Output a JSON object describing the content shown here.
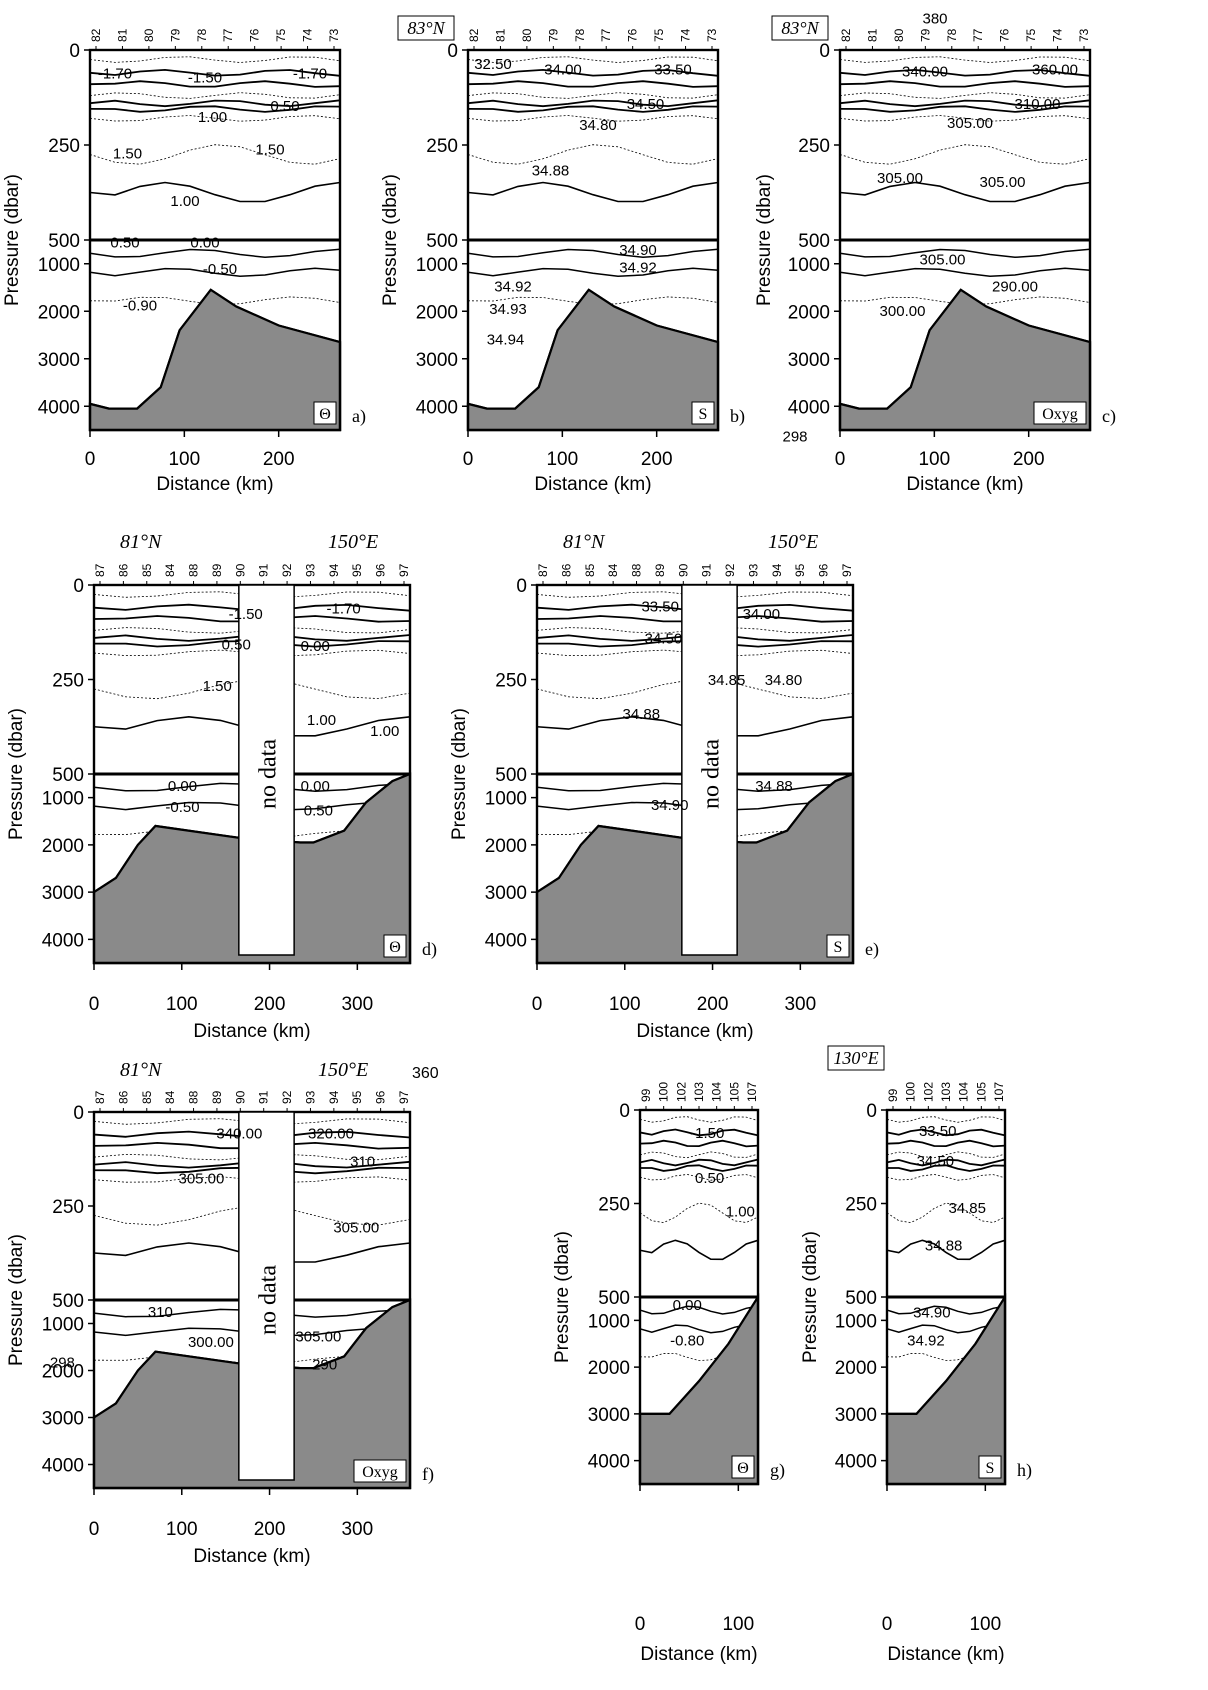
{
  "figure": {
    "panels": [
      {
        "id": "a",
        "label": "a)",
        "var": "Θ",
        "lat_label": "",
        "lon_label": "",
        "stations": [
          "82",
          "81",
          "80",
          "79",
          "78",
          "77",
          "76",
          "75",
          "74",
          "73"
        ],
        "upper_contour_labels": [
          "-1.70",
          "-1.50",
          "-1.70",
          "0.50",
          "1.00",
          "1.50",
          "1.50",
          "1.00"
        ],
        "lower_contour_labels": [
          "0.50",
          "0.00",
          "-0.50",
          "-0.90"
        ],
        "ylabel": "Pressure (dbar)",
        "xlabel": "Distance (km)",
        "upper_ticks": [
          "0",
          "250",
          "500"
        ],
        "lower_ticks": [
          "1000",
          "2000",
          "3000",
          "4000"
        ],
        "x_ticks": [
          "0",
          "100",
          "200"
        ],
        "no_data": false
      },
      {
        "id": "b",
        "label": "b)",
        "var": "S",
        "lat_label": "83°N",
        "lon_label": "",
        "stations": [
          "82",
          "81",
          "80",
          "79",
          "78",
          "77",
          "76",
          "75",
          "74",
          "73"
        ],
        "upper_contour_labels": [
          "32.50",
          "34.00",
          "33.50",
          "34.50",
          "34.80",
          "34.88"
        ],
        "lower_contour_labels": [
          "34.90",
          "34.92",
          "34.92",
          "34.93",
          "34.94"
        ],
        "ylabel": "Pressure (dbar)",
        "xlabel": "Distance (km)",
        "upper_ticks": [
          "0",
          "250",
          "500"
        ],
        "lower_ticks": [
          "1000",
          "2000",
          "3000",
          "4000"
        ],
        "x_ticks": [
          "0",
          "100",
          "200"
        ],
        "no_data": false
      },
      {
        "id": "c",
        "label": "c)",
        "var": "Oxyg",
        "lat_label": "83°N",
        "lon_label": "",
        "stations": [
          "82",
          "81",
          "80",
          "79",
          "78",
          "77",
          "76",
          "75",
          "74",
          "73"
        ],
        "upper_contour_labels": [
          "380",
          "340.00",
          "360.00",
          "310.00",
          "305.00",
          "305.00",
          "305.00"
        ],
        "lower_contour_labels": [
          "305.00",
          "290.00",
          "300.00",
          "298"
        ],
        "ylabel": "Pressure (dbar)",
        "xlabel": "Distance (km)",
        "upper_ticks": [
          "0",
          "250",
          "500"
        ],
        "lower_ticks": [
          "1000",
          "2000",
          "3000",
          "4000"
        ],
        "x_ticks": [
          "0",
          "100",
          "200"
        ],
        "no_data": false
      },
      {
        "id": "d",
        "label": "d)",
        "var": "Θ",
        "lat_label": "81°N",
        "lon_label": "150°E",
        "stations": [
          "87",
          "86",
          "85",
          "84",
          "88",
          "89",
          "90",
          "91",
          "92",
          "93",
          "94",
          "95",
          "96",
          "97"
        ],
        "upper_contour_labels": [
          "-1.50",
          "-1.70",
          "0.50",
          "0.00",
          "1.50",
          "1.00",
          "1.00"
        ],
        "lower_contour_labels": [
          "0.00",
          "0.00",
          "-0.50",
          "0.50"
        ],
        "ylabel": "Pressure (dbar)",
        "xlabel": "Distance (km)",
        "upper_ticks": [
          "0",
          "250",
          "500"
        ],
        "lower_ticks": [
          "1000",
          "2000",
          "3000",
          "4000"
        ],
        "x_ticks": [
          "0",
          "100",
          "200",
          "300"
        ],
        "no_data": true,
        "no_data_text": "no data"
      },
      {
        "id": "e",
        "label": "e)",
        "var": "S",
        "lat_label": "81°N",
        "lon_label": "150°E",
        "stations": [
          "87",
          "86",
          "85",
          "84",
          "88",
          "89",
          "90",
          "91",
          "92",
          "93",
          "94",
          "95",
          "96",
          "97"
        ],
        "upper_contour_labels": [
          "33.50",
          "34.00",
          "34.50",
          "34.85",
          "34.80",
          "34.88"
        ],
        "lower_contour_labels": [
          "34.88",
          "34.90"
        ],
        "ylabel": "Pressure (dbar)",
        "xlabel": "Distance (km)",
        "upper_ticks": [
          "0",
          "250",
          "500"
        ],
        "lower_ticks": [
          "1000",
          "2000",
          "3000",
          "4000"
        ],
        "x_ticks": [
          "0",
          "100",
          "200",
          "300"
        ],
        "no_data": true,
        "no_data_text": "no data"
      },
      {
        "id": "f",
        "label": "f)",
        "var": "Oxyg",
        "lat_label": "81°N",
        "lon_label": "150°E",
        "stations": [
          "87",
          "86",
          "85",
          "84",
          "88",
          "89",
          "90",
          "91",
          "92",
          "93",
          "94",
          "95",
          "96",
          "97"
        ],
        "extra_label": "360",
        "upper_contour_labels": [
          "340.00",
          "320.00",
          "310",
          "305.00",
          "305.00"
        ],
        "lower_contour_labels": [
          "310",
          "300.00",
          "305.00",
          "290",
          "298"
        ],
        "ylabel": "Pressure (dbar)",
        "xlabel": "Distance (km)",
        "upper_ticks": [
          "0",
          "250",
          "500"
        ],
        "lower_ticks": [
          "1000",
          "2000",
          "3000",
          "4000"
        ],
        "x_ticks": [
          "0",
          "100",
          "200",
          "300"
        ],
        "no_data": true,
        "no_data_text": "no data"
      },
      {
        "id": "g",
        "label": "g)",
        "var": "Θ",
        "lat_label": "",
        "lon_label": "",
        "stations": [
          "99",
          "100",
          "102",
          "103",
          "104",
          "105",
          "107"
        ],
        "upper_contour_labels": [
          "-1.50",
          "0.50",
          "1.00"
        ],
        "lower_contour_labels": [
          "0.00",
          "-0.80"
        ],
        "ylabel": "Pressure (dbar)",
        "xlabel": "Distance (km)",
        "upper_ticks": [
          "0",
          "250",
          "500"
        ],
        "lower_ticks": [
          "1000",
          "2000",
          "3000",
          "4000"
        ],
        "x_ticks": [
          "0",
          "100"
        ],
        "no_data": false
      },
      {
        "id": "h",
        "label": "h)",
        "var": "S",
        "lat_label": "130°E",
        "lon_label": "",
        "stations": [
          "99",
          "100",
          "102",
          "103",
          "104",
          "105",
          "107"
        ],
        "upper_contour_labels": [
          "33.50",
          "34.50",
          "34.85",
          "34.88"
        ],
        "lower_contour_labels": [
          "34.90",
          "34.92"
        ],
        "ylabel": "Pressure (dbar)",
        "xlabel": "Distance (km)",
        "upper_ticks": [
          "0",
          "250",
          "500"
        ],
        "lower_ticks": [
          "1000",
          "2000",
          "3000",
          "4000"
        ],
        "x_ticks": [
          "0",
          "100"
        ],
        "no_data": false
      }
    ]
  },
  "chart_data": [
    {
      "type": "heatmap",
      "title": "",
      "panel": "a)",
      "field": "Θ",
      "xlabel": "Distance (km)",
      "ylabel": "Pressure (dbar)",
      "xlim": [
        0,
        265
      ],
      "ylim_upper": [
        0,
        500
      ],
      "ylim_lower": [
        500,
        4500
      ],
      "contour_levels": [
        -1.7,
        -1.5,
        -1.7,
        0.5,
        1.0,
        1.5,
        1.5,
        1.0,
        0.5,
        0.0,
        -0.5,
        -0.9
      ],
      "bathymetry": {
        "x": [
          0,
          20,
          50,
          75,
          95,
          128,
          155,
          200,
          265
        ],
        "y": [
          3950,
          4050,
          4050,
          3600,
          2400,
          1550,
          1900,
          2300,
          2650
        ]
      }
    },
    {
      "type": "heatmap",
      "title": "",
      "panel": "b)",
      "field": "S",
      "xlabel": "Distance (km)",
      "ylabel": "Pressure (dbar)",
      "xlim": [
        0,
        265
      ],
      "ylim_upper": [
        0,
        500
      ],
      "ylim_lower": [
        500,
        4500
      ],
      "contour_levels": [
        32.5,
        34.0,
        33.5,
        34.5,
        34.8,
        34.88,
        34.9,
        34.92,
        34.92,
        34.93,
        34.94
      ],
      "bathymetry": {
        "x": [
          0,
          20,
          50,
          75,
          95,
          128,
          155,
          200,
          265
        ],
        "y": [
          3950,
          4050,
          4050,
          3600,
          2400,
          1550,
          1900,
          2300,
          2650
        ]
      }
    },
    {
      "type": "heatmap",
      "title": "",
      "panel": "c)",
      "field": "Oxyg",
      "xlabel": "Distance (km)",
      "ylabel": "Pressure (dbar)",
      "xlim": [
        0,
        265
      ],
      "ylim_upper": [
        0,
        500
      ],
      "ylim_lower": [
        500,
        4500
      ],
      "contour_levels": [
        380,
        340.0,
        360.0,
        310.0,
        305.0,
        305.0,
        305.0,
        305.0,
        290.0,
        300.0,
        298
      ],
      "bathymetry": {
        "x": [
          0,
          20,
          50,
          75,
          95,
          128,
          155,
          200,
          265
        ],
        "y": [
          3950,
          4050,
          4050,
          3600,
          2400,
          1550,
          1900,
          2300,
          2650
        ]
      }
    },
    {
      "type": "heatmap",
      "title": "",
      "panel": "d)",
      "field": "Θ",
      "xlabel": "Distance (km)",
      "ylabel": "Pressure (dbar)",
      "xlim": [
        0,
        360
      ],
      "ylim_upper": [
        0,
        500
      ],
      "ylim_lower": [
        500,
        4500
      ],
      "contour_levels": [
        -1.5,
        -1.7,
        0.5,
        0.0,
        1.5,
        1.0,
        1.0,
        0.0,
        0.0,
        -0.5,
        0.5
      ],
      "bathymetry": {
        "x": [
          0,
          25,
          50,
          70,
          165,
          235,
          250,
          285,
          310,
          340,
          360
        ],
        "y": [
          3000,
          2700,
          2000,
          1600,
          1850,
          1950,
          1950,
          1700,
          1100,
          650,
          500
        ]
      }
    },
    {
      "type": "heatmap",
      "title": "",
      "panel": "e)",
      "field": "S",
      "xlabel": "Distance (km)",
      "ylabel": "Pressure (dbar)",
      "xlim": [
        0,
        360
      ],
      "ylim_upper": [
        0,
        500
      ],
      "ylim_lower": [
        500,
        4500
      ],
      "contour_levels": [
        33.5,
        34.0,
        34.5,
        34.85,
        34.8,
        34.88,
        34.88,
        34.9
      ],
      "bathymetry": {
        "x": [
          0,
          25,
          50,
          70,
          165,
          235,
          250,
          285,
          310,
          340,
          360
        ],
        "y": [
          3000,
          2700,
          2000,
          1600,
          1850,
          1950,
          1950,
          1700,
          1100,
          650,
          500
        ]
      }
    },
    {
      "type": "heatmap",
      "title": "",
      "panel": "f)",
      "field": "Oxyg",
      "xlabel": "Distance (km)",
      "ylabel": "Pressure (dbar)",
      "xlim": [
        0,
        360
      ],
      "ylim_upper": [
        0,
        500
      ],
      "ylim_lower": [
        500,
        4500
      ],
      "contour_levels": [
        360,
        340.0,
        320.0,
        310,
        305.0,
        305.0,
        310,
        300.0,
        305.0,
        290,
        298
      ],
      "bathymetry": {
        "x": [
          0,
          25,
          50,
          70,
          165,
          235,
          250,
          285,
          310,
          340,
          360
        ],
        "y": [
          3000,
          2700,
          2000,
          1600,
          1850,
          1950,
          1950,
          1700,
          1100,
          650,
          500
        ]
      }
    },
    {
      "type": "heatmap",
      "title": "",
      "panel": "g)",
      "field": "Θ",
      "xlabel": "Distance (km)",
      "ylabel": "Pressure (dbar)",
      "xlim": [
        0,
        120
      ],
      "ylim_upper": [
        0,
        500
      ],
      "ylim_lower": [
        500,
        4500
      ],
      "contour_levels": [
        -1.5,
        0.5,
        1.0,
        0.0,
        -0.8
      ],
      "bathymetry": {
        "x": [
          0,
          30,
          60,
          90,
          108,
          120
        ],
        "y": [
          3000,
          3000,
          2300,
          1500,
          900,
          500
        ]
      }
    },
    {
      "type": "heatmap",
      "title": "",
      "panel": "h)",
      "field": "S",
      "xlabel": "Distance (km)",
      "ylabel": "Pressure (dbar)",
      "xlim": [
        0,
        120
      ],
      "ylim_upper": [
        0,
        500
      ],
      "ylim_lower": [
        500,
        4500
      ],
      "contour_levels": [
        33.5,
        34.5,
        34.85,
        34.88,
        34.9,
        34.92
      ],
      "bathymetry": {
        "x": [
          0,
          30,
          60,
          90,
          108,
          120
        ],
        "y": [
          3000,
          3000,
          2300,
          1500,
          900,
          500
        ]
      }
    }
  ]
}
